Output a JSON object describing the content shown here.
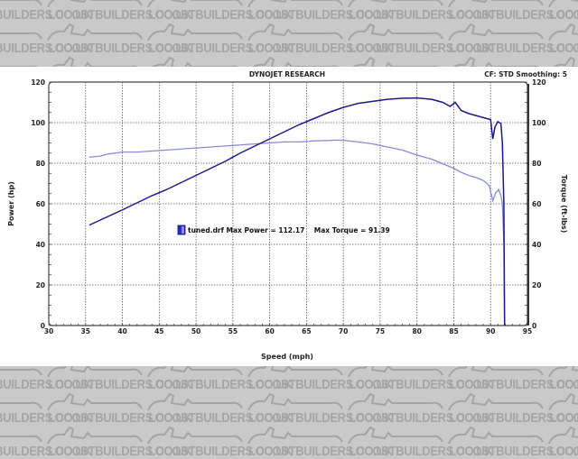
{
  "watermark": {
    "text": "LOCOSTBUILDERS.CO.UK"
  },
  "header": {
    "title": "DYNOJET RESEARCH",
    "info": "CF: STD  Smoothing: 5"
  },
  "legend": {
    "label": "tuned.drf Max Power = 112.17    Max Torque = 91.39",
    "swatch_color": "#2a2ad6"
  },
  "colors": {
    "power": "#1a1a8c",
    "torque": "#8a8ad8",
    "grid": "#555555",
    "axis": "#333333"
  },
  "chart_data": {
    "type": "line",
    "title": "DYNOJET RESEARCH",
    "subtitle": "CF: STD  Smoothing: 5",
    "xlabel": "Speed (mph)",
    "ylabel": "Power (hp)",
    "y2label": "Torque (ft-lbs)",
    "xlim": [
      30,
      95
    ],
    "ylim": [
      0,
      120
    ],
    "y2lim": [
      0,
      120
    ],
    "xticks": [
      30,
      35,
      40,
      45,
      50,
      55,
      60,
      65,
      70,
      75,
      80,
      85,
      90,
      95
    ],
    "yticks": [
      0,
      20,
      40,
      60,
      80,
      100,
      120
    ],
    "y2ticks": [
      0,
      20,
      40,
      60,
      80,
      100,
      120
    ],
    "grid": true,
    "legend_position": "center-left",
    "annotations": [
      "tuned.drf Max Power = 112.17",
      "Max Torque = 91.39"
    ],
    "series": [
      {
        "name": "Power (hp)",
        "axis": "left",
        "x": [
          35.5,
          37,
          38.5,
          40,
          42,
          44,
          46,
          48,
          50,
          52,
          54,
          56,
          58,
          60,
          62,
          64,
          66,
          68,
          70,
          72,
          74,
          76,
          78,
          80,
          82,
          83.5,
          84.5,
          85.2,
          86,
          87,
          88,
          89,
          90,
          90.3,
          90.6,
          91.0,
          91.4,
          91.6,
          91.8,
          91.9
        ],
        "values": [
          49.5,
          52,
          54.5,
          57,
          60.5,
          64,
          67,
          70.5,
          74,
          77.5,
          81,
          85,
          88.5,
          92,
          95.5,
          99,
          102,
          105,
          107.5,
          109.5,
          110.5,
          111.5,
          112,
          112.17,
          111.5,
          110,
          108,
          110,
          106,
          104.5,
          103.5,
          102.5,
          101.5,
          92,
          98,
          100.5,
          99.5,
          90,
          60,
          0
        ]
      },
      {
        "name": "Torque (ft-lbs)",
        "axis": "right",
        "x": [
          35.5,
          37,
          38,
          40,
          42,
          44,
          46,
          48,
          50,
          52,
          54,
          56,
          58,
          60,
          62,
          64,
          66,
          68,
          69,
          70,
          72,
          74,
          76,
          78,
          80,
          82,
          84,
          85,
          86,
          87,
          88,
          89,
          89.8,
          90.3,
          90.7,
          91.1,
          91.4,
          91.6,
          91.8,
          91.9
        ],
        "values": [
          83,
          83.5,
          84.5,
          85.5,
          85.5,
          86,
          86.5,
          87,
          87.5,
          88,
          88.5,
          89,
          89.5,
          90,
          90.5,
          90.5,
          91,
          91.2,
          91.39,
          91.3,
          90.5,
          89.5,
          88,
          86.5,
          84,
          82,
          79,
          77.5,
          75.5,
          74,
          73,
          71.5,
          69,
          61.5,
          65.5,
          67,
          64,
          60,
          40,
          0
        ]
      }
    ]
  }
}
